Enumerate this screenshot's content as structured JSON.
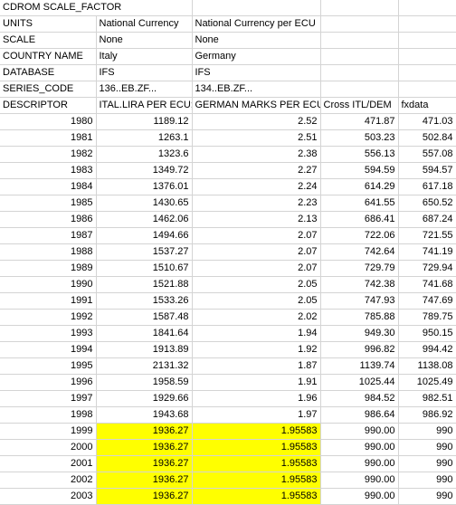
{
  "header_rows": [
    {
      "label": "CDROM SCALE_FACTOR",
      "cells": [
        "",
        "",
        "",
        ""
      ],
      "span": true
    },
    {
      "label": "UNITS",
      "cells": [
        "National Currency",
        "National Currency per ECU",
        "",
        ""
      ]
    },
    {
      "label": "SCALE",
      "cells": [
        "None",
        "None",
        "",
        ""
      ]
    },
    {
      "label": "COUNTRY NAME",
      "cells": [
        "Italy",
        "Germany",
        "",
        ""
      ]
    },
    {
      "label": "DATABASE",
      "cells": [
        "IFS",
        "IFS",
        "",
        ""
      ]
    },
    {
      "label": "SERIES_CODE",
      "cells": [
        "136..EB.ZF...",
        "134..EB.ZF...",
        "",
        ""
      ]
    },
    {
      "label": "DESCRIPTOR",
      "cells": [
        "ITAL.LIRA PER ECU;",
        "GERMAN MARKS PER ECU;",
        "Cross ITL/DEM",
        "fxdata"
      ]
    }
  ],
  "data_rows": [
    {
      "year": "1980",
      "lira": "1189.12",
      "marks": "2.52",
      "cross": "471.87",
      "fx": "471.03",
      "hl": false
    },
    {
      "year": "1981",
      "lira": "1263.1",
      "marks": "2.51",
      "cross": "503.23",
      "fx": "502.84",
      "hl": false
    },
    {
      "year": "1982",
      "lira": "1323.6",
      "marks": "2.38",
      "cross": "556.13",
      "fx": "557.08",
      "hl": false
    },
    {
      "year": "1983",
      "lira": "1349.72",
      "marks": "2.27",
      "cross": "594.59",
      "fx": "594.57",
      "hl": false
    },
    {
      "year": "1984",
      "lira": "1376.01",
      "marks": "2.24",
      "cross": "614.29",
      "fx": "617.18",
      "hl": false
    },
    {
      "year": "1985",
      "lira": "1430.65",
      "marks": "2.23",
      "cross": "641.55",
      "fx": "650.52",
      "hl": false
    },
    {
      "year": "1986",
      "lira": "1462.06",
      "marks": "2.13",
      "cross": "686.41",
      "fx": "687.24",
      "hl": false
    },
    {
      "year": "1987",
      "lira": "1494.66",
      "marks": "2.07",
      "cross": "722.06",
      "fx": "721.55",
      "hl": false
    },
    {
      "year": "1988",
      "lira": "1537.27",
      "marks": "2.07",
      "cross": "742.64",
      "fx": "741.19",
      "hl": false
    },
    {
      "year": "1989",
      "lira": "1510.67",
      "marks": "2.07",
      "cross": "729.79",
      "fx": "729.94",
      "hl": false
    },
    {
      "year": "1990",
      "lira": "1521.88",
      "marks": "2.05",
      "cross": "742.38",
      "fx": "741.68",
      "hl": false
    },
    {
      "year": "1991",
      "lira": "1533.26",
      "marks": "2.05",
      "cross": "747.93",
      "fx": "747.69",
      "hl": false
    },
    {
      "year": "1992",
      "lira": "1587.48",
      "marks": "2.02",
      "cross": "785.88",
      "fx": "789.75",
      "hl": false
    },
    {
      "year": "1993",
      "lira": "1841.64",
      "marks": "1.94",
      "cross": "949.30",
      "fx": "950.15",
      "hl": false
    },
    {
      "year": "1994",
      "lira": "1913.89",
      "marks": "1.92",
      "cross": "996.82",
      "fx": "994.42",
      "hl": false
    },
    {
      "year": "1995",
      "lira": "2131.32",
      "marks": "1.87",
      "cross": "1139.74",
      "fx": "1138.08",
      "hl": false
    },
    {
      "year": "1996",
      "lira": "1958.59",
      "marks": "1.91",
      "cross": "1025.44",
      "fx": "1025.49",
      "hl": false
    },
    {
      "year": "1997",
      "lira": "1929.66",
      "marks": "1.96",
      "cross": "984.52",
      "fx": "982.51",
      "hl": false
    },
    {
      "year": "1998",
      "lira": "1943.68",
      "marks": "1.97",
      "cross": "986.64",
      "fx": "986.92",
      "hl": false
    },
    {
      "year": "1999",
      "lira": "1936.27",
      "marks": "1.95583",
      "cross": "990.00",
      "fx": "990",
      "hl": true
    },
    {
      "year": "2000",
      "lira": "1936.27",
      "marks": "1.95583",
      "cross": "990.00",
      "fx": "990",
      "hl": true
    },
    {
      "year": "2001",
      "lira": "1936.27",
      "marks": "1.95583",
      "cross": "990.00",
      "fx": "990",
      "hl": true
    },
    {
      "year": "2002",
      "lira": "1936.27",
      "marks": "1.95583",
      "cross": "990.00",
      "fx": "990",
      "hl": true
    },
    {
      "year": "2003",
      "lira": "1936.27",
      "marks": "1.95583",
      "cross": "990.00",
      "fx": "990",
      "hl": true
    }
  ],
  "colors": {
    "highlight": "#ffff00",
    "gridline": "#d4d4d4"
  }
}
